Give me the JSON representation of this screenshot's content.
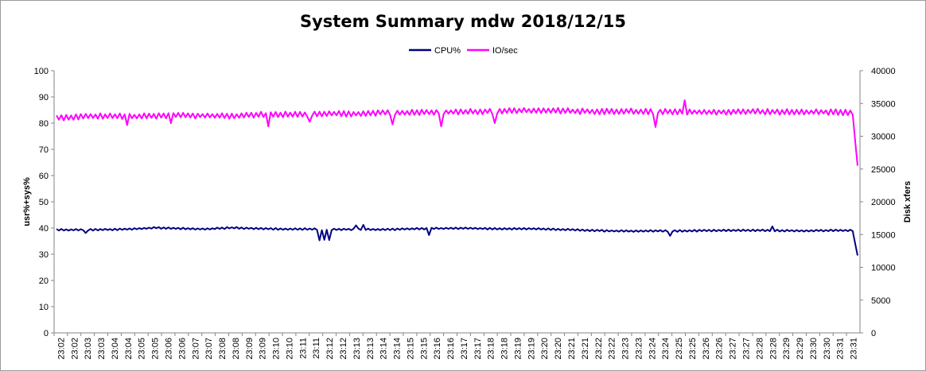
{
  "chart_data": {
    "type": "line",
    "title": "System Summary mdw  2018/12/15",
    "ylabel_left": "usr%+sys%",
    "ylabel_right": "Disk xfers",
    "ylim_left": [
      0,
      100
    ],
    "yticks_left": [
      "0",
      "10",
      "20",
      "30",
      "40",
      "50",
      "60",
      "70",
      "80",
      "90",
      "100"
    ],
    "ylim_right": [
      0,
      40000
    ],
    "yticks_right": [
      "0",
      "5000",
      "10000",
      "15000",
      "20000",
      "25000",
      "30000",
      "35000",
      "40000"
    ],
    "x_tick_labels": [
      "23:02",
      "23:02",
      "23:03",
      "23:03",
      "23:04",
      "23:04",
      "23:05",
      "23:05",
      "23:06",
      "23:06",
      "23:07",
      "23:07",
      "23:08",
      "23:08",
      "23:09",
      "23:09",
      "23:10",
      "23:10",
      "23:11",
      "23:11",
      "23:12",
      "23:12",
      "23:13",
      "23:13",
      "23:14",
      "23:14",
      "23:15",
      "23:15",
      "23:16",
      "23:16",
      "23:17",
      "23:17",
      "23:18",
      "23:18",
      "23:19",
      "23:19",
      "23:20",
      "23:20",
      "23:21",
      "23:21",
      "23:22",
      "23:22",
      "23:23",
      "23:23",
      "23:24",
      "23:24",
      "23:25",
      "23:25",
      "23:26",
      "23:26",
      "23:27",
      "23:27",
      "23:28",
      "23:28",
      "23:29",
      "23:29",
      "23:30",
      "23:30",
      "23:31",
      "23:31"
    ],
    "legend_position": "top",
    "grid": false,
    "series": [
      {
        "name": "CPU%",
        "axis": "left",
        "color": "#000080",
        "baseline": [
          39.3,
          39.3,
          39.4,
          39.6,
          40.1,
          39.8,
          39.6,
          40.1,
          39.8,
          39.6,
          39.6,
          39.5,
          39.5,
          39.4,
          39.6,
          39.8,
          39.9,
          39.8,
          39.7,
          39.7,
          39.5,
          39.2,
          38.9,
          38.8,
          38.9,
          38.9,
          39.0,
          39.1,
          39.1,
          39.0,
          38.9,
          39.1,
          39.0
        ],
        "dips": [
          [
            4,
            38.1
          ],
          [
            36,
            35.3
          ],
          [
            36.6,
            35.5
          ],
          [
            37.4,
            35.4
          ],
          [
            41,
            41.0
          ],
          [
            42,
            41.2
          ],
          [
            51,
            37.3
          ],
          [
            84,
            37.0
          ],
          [
            98,
            40.6
          ]
        ],
        "end_value": 29.5
      },
      {
        "name": "IO/sec",
        "axis": "right",
        "color": "#ff00ff",
        "baseline": [
          32800,
          33000,
          33100,
          33000,
          33100,
          33200,
          33100,
          33100,
          33300,
          33300,
          33400,
          33500,
          33400,
          33600,
          33600,
          33700,
          33700,
          33800,
          33900,
          33900,
          33900,
          33800,
          33800,
          33800,
          33800,
          33700,
          33700,
          33700,
          33800,
          33700,
          33700,
          33700,
          33500
        ],
        "dips": [
          [
            9.5,
            31700
          ],
          [
            15.5,
            32000
          ],
          [
            29,
            31500
          ],
          [
            34.5,
            32200
          ],
          [
            46,
            31800
          ],
          [
            52.5,
            31500
          ],
          [
            60,
            32000
          ],
          [
            82,
            31400
          ],
          [
            86,
            35500
          ],
          [
            110,
            37100
          ]
        ],
        "end_value": 25500
      }
    ]
  }
}
